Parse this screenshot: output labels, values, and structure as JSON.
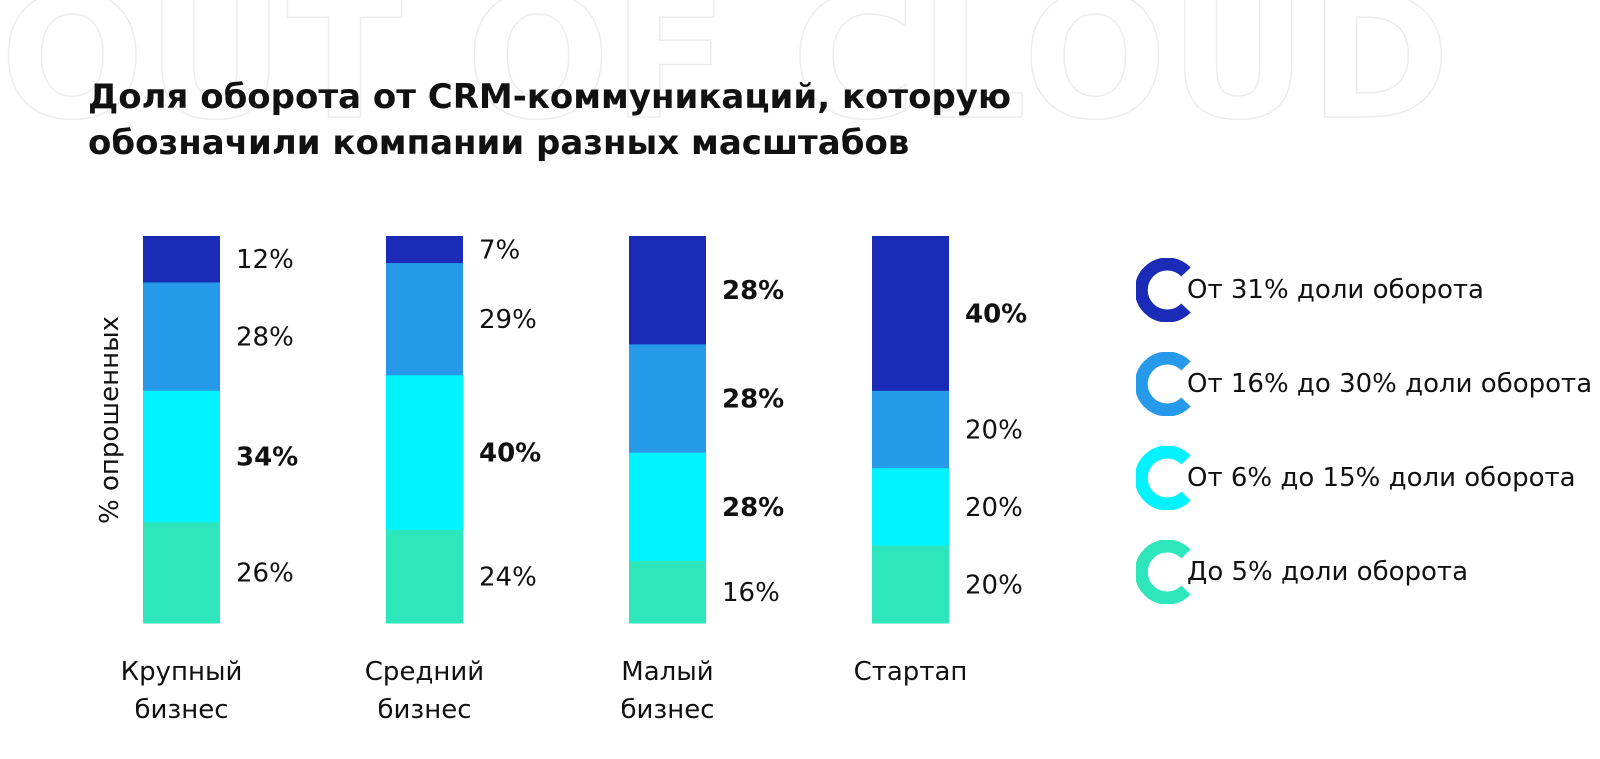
{
  "watermark": "OUT OF CLOUD",
  "chart_data": {
    "type": "bar",
    "stacked": true,
    "title": "Доля оборота от CRM-коммуникаций, которую обозначили компании разных масштабов",
    "title_lines": [
      "Доля оборота от CRM-коммуникаций, которую",
      "обозначили компании разных масштабов"
    ],
    "ylabel": "% опрошенных",
    "xlabel": "",
    "ylim": [
      0,
      100
    ],
    "grid": false,
    "legend_position": "right",
    "categories": [
      [
        "Крупный",
        "бизнес"
      ],
      [
        "Средний",
        "бизнес"
      ],
      [
        "Малый",
        "бизнес"
      ],
      [
        "Стартап"
      ]
    ],
    "series": [
      {
        "name": "От 31% доли оборота",
        "color": "#1a2bb8",
        "values": [
          12,
          7,
          28,
          40
        ],
        "labels": [
          "12%",
          "7%",
          "28%",
          "40%"
        ],
        "bold": [
          false,
          false,
          true,
          true
        ]
      },
      {
        "name": "От 16% до 30% доли оборота",
        "color": "#2699e8",
        "values": [
          28,
          29,
          28,
          20
        ],
        "labels": [
          "28%",
          "29%",
          "28%",
          "20%"
        ],
        "bold": [
          false,
          false,
          true,
          false
        ]
      },
      {
        "name": "От 6% до 15% доли оборота",
        "color": "#00f3ff",
        "values": [
          34,
          40,
          28,
          20
        ],
        "labels": [
          "34%",
          "40%",
          "28%",
          "20%"
        ],
        "bold": [
          true,
          true,
          true,
          false
        ]
      },
      {
        "name": "До 5% доли оборота",
        "color": "#2ee6bc",
        "values": [
          26,
          24,
          16,
          20
        ],
        "labels": [
          "26%",
          "24%",
          "16%",
          "20%"
        ],
        "bold": [
          false,
          false,
          false,
          false
        ]
      }
    ]
  }
}
